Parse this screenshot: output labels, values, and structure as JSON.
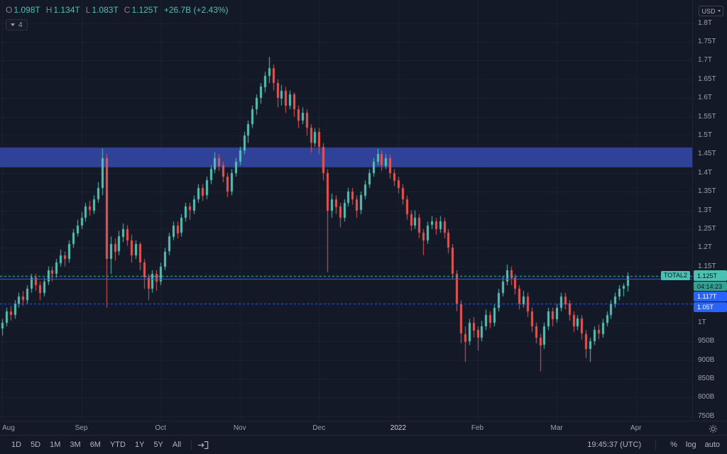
{
  "legend": {
    "ohlc": [
      {
        "k": "O",
        "v": "1.098T"
      },
      {
        "k": "H",
        "v": "1.134T"
      },
      {
        "k": "L",
        "v": "1.083T"
      },
      {
        "k": "C",
        "v": "1.125T"
      }
    ],
    "change": "+26.7B (+2.43%)",
    "collapsed_count": "4"
  },
  "price_axis": {
    "currency": "USD"
  },
  "toolbar": {
    "ranges": [
      "1D",
      "5D",
      "1M",
      "3M",
      "6M",
      "YTD",
      "1Y",
      "5Y",
      "All"
    ],
    "clock": "19:45:37 (UTC)",
    "percent": "%",
    "log": "log",
    "auto": "auto"
  },
  "chart_data": {
    "type": "candlestick",
    "title": "TOTAL2",
    "currency": "USD",
    "units": "trillions USD",
    "y_min": 0.738,
    "y_max": 1.862,
    "total_slots": 166,
    "colors": {
      "up": "#53c2b4",
      "down": "#e8544f",
      "grid": "rgba(255,255,255,0.04)"
    },
    "band": {
      "from": 1.415,
      "to": 1.468,
      "color": "rgba(48,69,158,0.95)"
    },
    "levels": [
      {
        "price": 1.125,
        "label": "1.125T",
        "type": "current",
        "color": "#4cc0b2",
        "line": "dashed",
        "countdown": "04:14:23"
      },
      {
        "price": 1.117,
        "label": "1.117T",
        "type": "alert",
        "color": "#2962ff",
        "line": "solid"
      },
      {
        "price": 1.05,
        "label": "1.05T",
        "type": "alert",
        "color": "#2962ff",
        "line": "dashed"
      }
    ],
    "price_ticks": [
      {
        "p": 1.8,
        "label": "1.8T"
      },
      {
        "p": 1.75,
        "label": "1.75T"
      },
      {
        "p": 1.7,
        "label": "1.7T"
      },
      {
        "p": 1.65,
        "label": "1.65T"
      },
      {
        "p": 1.6,
        "label": "1.6T"
      },
      {
        "p": 1.55,
        "label": "1.55T"
      },
      {
        "p": 1.5,
        "label": "1.5T"
      },
      {
        "p": 1.45,
        "label": "1.45T"
      },
      {
        "p": 1.4,
        "label": "1.4T"
      },
      {
        "p": 1.35,
        "label": "1.35T"
      },
      {
        "p": 1.3,
        "label": "1.3T"
      },
      {
        "p": 1.25,
        "label": "1.25T"
      },
      {
        "p": 1.2,
        "label": "1.2T"
      },
      {
        "p": 1.15,
        "label": "1.15T"
      },
      {
        "p": 1.0,
        "label": "1T"
      },
      {
        "p": 0.95,
        "label": "950B"
      },
      {
        "p": 0.9,
        "label": "900B"
      },
      {
        "p": 0.85,
        "label": "850B"
      },
      {
        "p": 0.8,
        "label": "800B"
      },
      {
        "p": 0.75,
        "label": "750B"
      }
    ],
    "month_ticks": [
      {
        "slot": 0,
        "label": "Aug"
      },
      {
        "slot": 19,
        "label": "Sep"
      },
      {
        "slot": 38,
        "label": "Oct"
      },
      {
        "slot": 57,
        "label": "Nov"
      },
      {
        "slot": 76,
        "label": "Dec"
      },
      {
        "slot": 95,
        "label": "2022",
        "year": true
      },
      {
        "slot": 114,
        "label": "Feb"
      },
      {
        "slot": 133,
        "label": "Mar"
      },
      {
        "slot": 152,
        "label": "Apr"
      }
    ],
    "candles": [
      [
        0.985,
        1.01,
        0.965,
        1.0
      ],
      [
        1.0,
        1.04,
        0.99,
        1.03
      ],
      [
        1.03,
        1.045,
        1.005,
        1.02
      ],
      [
        1.02,
        1.06,
        1.01,
        1.05
      ],
      [
        1.05,
        1.08,
        1.04,
        1.07
      ],
      [
        1.07,
        1.085,
        1.045,
        1.06
      ],
      [
        1.06,
        1.1,
        1.05,
        1.09
      ],
      [
        1.09,
        1.13,
        1.08,
        1.12
      ],
      [
        1.12,
        1.13,
        1.085,
        1.1
      ],
      [
        1.1,
        1.11,
        1.06,
        1.08
      ],
      [
        1.08,
        1.12,
        1.07,
        1.11
      ],
      [
        1.11,
        1.15,
        1.1,
        1.14
      ],
      [
        1.14,
        1.15,
        1.11,
        1.13
      ],
      [
        1.13,
        1.17,
        1.12,
        1.16
      ],
      [
        1.16,
        1.195,
        1.15,
        1.18
      ],
      [
        1.18,
        1.19,
        1.15,
        1.17
      ],
      [
        1.17,
        1.22,
        1.16,
        1.21
      ],
      [
        1.21,
        1.25,
        1.2,
        1.24
      ],
      [
        1.24,
        1.275,
        1.23,
        1.26
      ],
      [
        1.26,
        1.295,
        1.25,
        1.28
      ],
      [
        1.28,
        1.32,
        1.27,
        1.31
      ],
      [
        1.31,
        1.325,
        1.285,
        1.3
      ],
      [
        1.3,
        1.34,
        1.29,
        1.33
      ],
      [
        1.33,
        1.375,
        1.32,
        1.36
      ],
      [
        1.36,
        1.465,
        1.34,
        1.44
      ],
      [
        1.44,
        1.45,
        1.04,
        1.17
      ],
      [
        1.17,
        1.23,
        1.13,
        1.21
      ],
      [
        1.21,
        1.225,
        1.165,
        1.19
      ],
      [
        1.19,
        1.245,
        1.18,
        1.23
      ],
      [
        1.23,
        1.265,
        1.215,
        1.25
      ],
      [
        1.25,
        1.26,
        1.205,
        1.22
      ],
      [
        1.22,
        1.235,
        1.16,
        1.18
      ],
      [
        1.18,
        1.22,
        1.17,
        1.21
      ],
      [
        1.21,
        1.215,
        1.14,
        1.16
      ],
      [
        1.16,
        1.17,
        1.09,
        1.12
      ],
      [
        1.12,
        1.13,
        1.06,
        1.09
      ],
      [
        1.09,
        1.14,
        1.08,
        1.13
      ],
      [
        1.13,
        1.14,
        1.085,
        1.11
      ],
      [
        1.11,
        1.16,
        1.1,
        1.15
      ],
      [
        1.15,
        1.2,
        1.14,
        1.19
      ],
      [
        1.19,
        1.24,
        1.18,
        1.23
      ],
      [
        1.23,
        1.27,
        1.22,
        1.26
      ],
      [
        1.26,
        1.27,
        1.225,
        1.24
      ],
      [
        1.24,
        1.29,
        1.23,
        1.28
      ],
      [
        1.28,
        1.32,
        1.27,
        1.31
      ],
      [
        1.31,
        1.32,
        1.275,
        1.3
      ],
      [
        1.3,
        1.34,
        1.29,
        1.33
      ],
      [
        1.33,
        1.37,
        1.32,
        1.36
      ],
      [
        1.36,
        1.37,
        1.325,
        1.34
      ],
      [
        1.34,
        1.39,
        1.33,
        1.38
      ],
      [
        1.38,
        1.42,
        1.37,
        1.41
      ],
      [
        1.41,
        1.455,
        1.4,
        1.44
      ],
      [
        1.44,
        1.45,
        1.405,
        1.42
      ],
      [
        1.42,
        1.43,
        1.375,
        1.39
      ],
      [
        1.39,
        1.4,
        1.335,
        1.35
      ],
      [
        1.35,
        1.41,
        1.34,
        1.4
      ],
      [
        1.4,
        1.44,
        1.39,
        1.43
      ],
      [
        1.43,
        1.47,
        1.42,
        1.46
      ],
      [
        1.46,
        1.51,
        1.45,
        1.5
      ],
      [
        1.5,
        1.54,
        1.48,
        1.53
      ],
      [
        1.53,
        1.58,
        1.52,
        1.57
      ],
      [
        1.57,
        1.61,
        1.555,
        1.6
      ],
      [
        1.6,
        1.64,
        1.585,
        1.63
      ],
      [
        1.63,
        1.67,
        1.615,
        1.66
      ],
      [
        1.66,
        1.71,
        1.64,
        1.68
      ],
      [
        1.68,
        1.69,
        1.62,
        1.64
      ],
      [
        1.64,
        1.65,
        1.575,
        1.6
      ],
      [
        1.6,
        1.635,
        1.58,
        1.62
      ],
      [
        1.62,
        1.63,
        1.56,
        1.58
      ],
      [
        1.58,
        1.62,
        1.57,
        1.61
      ],
      [
        1.61,
        1.615,
        1.55,
        1.57
      ],
      [
        1.57,
        1.58,
        1.52,
        1.54
      ],
      [
        1.54,
        1.575,
        1.53,
        1.56
      ],
      [
        1.56,
        1.57,
        1.5,
        1.52
      ],
      [
        1.52,
        1.53,
        1.455,
        1.48
      ],
      [
        1.48,
        1.52,
        1.47,
        1.51
      ],
      [
        1.51,
        1.52,
        1.45,
        1.47
      ],
      [
        1.47,
        1.48,
        1.38,
        1.4
      ],
      [
        1.4,
        1.41,
        1.135,
        1.3
      ],
      [
        1.3,
        1.345,
        1.28,
        1.33
      ],
      [
        1.33,
        1.34,
        1.29,
        1.31
      ],
      [
        1.31,
        1.32,
        1.255,
        1.28
      ],
      [
        1.28,
        1.33,
        1.27,
        1.32
      ],
      [
        1.32,
        1.36,
        1.31,
        1.35
      ],
      [
        1.35,
        1.36,
        1.315,
        1.33
      ],
      [
        1.33,
        1.34,
        1.28,
        1.3
      ],
      [
        1.3,
        1.35,
        1.29,
        1.34
      ],
      [
        1.34,
        1.38,
        1.33,
        1.37
      ],
      [
        1.37,
        1.41,
        1.36,
        1.4
      ],
      [
        1.4,
        1.44,
        1.39,
        1.43
      ],
      [
        1.43,
        1.465,
        1.42,
        1.45
      ],
      [
        1.45,
        1.46,
        1.405,
        1.42
      ],
      [
        1.42,
        1.45,
        1.41,
        1.44
      ],
      [
        1.44,
        1.45,
        1.385,
        1.4
      ],
      [
        1.4,
        1.41,
        1.365,
        1.38
      ],
      [
        1.38,
        1.39,
        1.345,
        1.36
      ],
      [
        1.36,
        1.37,
        1.315,
        1.33
      ],
      [
        1.33,
        1.34,
        1.275,
        1.29
      ],
      [
        1.29,
        1.3,
        1.245,
        1.26
      ],
      [
        1.26,
        1.3,
        1.25,
        1.28
      ],
      [
        1.28,
        1.29,
        1.225,
        1.24
      ],
      [
        1.24,
        1.25,
        1.18,
        1.22
      ],
      [
        1.22,
        1.27,
        1.21,
        1.26
      ],
      [
        1.26,
        1.285,
        1.25,
        1.27
      ],
      [
        1.27,
        1.28,
        1.235,
        1.25
      ],
      [
        1.25,
        1.285,
        1.24,
        1.27
      ],
      [
        1.27,
        1.28,
        1.225,
        1.24
      ],
      [
        1.24,
        1.25,
        1.185,
        1.2
      ],
      [
        1.2,
        1.21,
        1.115,
        1.13
      ],
      [
        1.13,
        1.14,
        1.03,
        1.05
      ],
      [
        1.05,
        1.06,
        0.945,
        0.97
      ],
      [
        0.97,
        0.99,
        0.895,
        0.95
      ],
      [
        0.95,
        1.01,
        0.94,
        1.0
      ],
      [
        1.0,
        1.015,
        0.96,
        0.98
      ],
      [
        0.98,
        0.99,
        0.925,
        0.96
      ],
      [
        0.96,
        1.005,
        0.95,
        0.99
      ],
      [
        0.99,
        1.035,
        0.98,
        1.02
      ],
      [
        1.02,
        1.03,
        0.985,
        1.0
      ],
      [
        1.0,
        1.05,
        0.99,
        1.04
      ],
      [
        1.04,
        1.09,
        1.03,
        1.08
      ],
      [
        1.08,
        1.125,
        1.07,
        1.11
      ],
      [
        1.11,
        1.155,
        1.1,
        1.14
      ],
      [
        1.14,
        1.15,
        1.1,
        1.12
      ],
      [
        1.12,
        1.13,
        1.075,
        1.09
      ],
      [
        1.09,
        1.1,
        1.035,
        1.05
      ],
      [
        1.05,
        1.085,
        1.04,
        1.07
      ],
      [
        1.07,
        1.08,
        1.015,
        1.03
      ],
      [
        1.03,
        1.04,
        0.975,
        0.99
      ],
      [
        0.99,
        1.0,
        0.945,
        0.96
      ],
      [
        0.96,
        0.97,
        0.87,
        0.94
      ],
      [
        0.94,
        1.0,
        0.93,
        0.99
      ],
      [
        0.99,
        1.04,
        0.98,
        1.03
      ],
      [
        1.03,
        1.04,
        0.99,
        1.01
      ],
      [
        1.01,
        1.05,
        1.0,
        1.04
      ],
      [
        1.04,
        1.08,
        1.03,
        1.07
      ],
      [
        1.07,
        1.08,
        1.035,
        1.05
      ],
      [
        1.05,
        1.06,
        1.005,
        1.02
      ],
      [
        1.02,
        1.03,
        0.975,
        0.99
      ],
      [
        0.99,
        1.02,
        0.98,
        1.01
      ],
      [
        1.01,
        1.02,
        0.955,
        0.97
      ],
      [
        0.97,
        0.98,
        0.905,
        0.93
      ],
      [
        0.93,
        0.96,
        0.895,
        0.95
      ],
      [
        0.95,
        0.99,
        0.94,
        0.98
      ],
      [
        0.98,
        0.995,
        0.955,
        0.97
      ],
      [
        0.97,
        1.01,
        0.96,
        1.0
      ],
      [
        1.0,
        1.03,
        0.99,
        1.02
      ],
      [
        1.02,
        1.06,
        1.01,
        1.05
      ],
      [
        1.05,
        1.08,
        1.04,
        1.07
      ],
      [
        1.07,
        1.1,
        1.06,
        1.09
      ],
      [
        1.09,
        1.105,
        1.07,
        1.098
      ],
      [
        1.098,
        1.134,
        1.083,
        1.125
      ]
    ]
  }
}
